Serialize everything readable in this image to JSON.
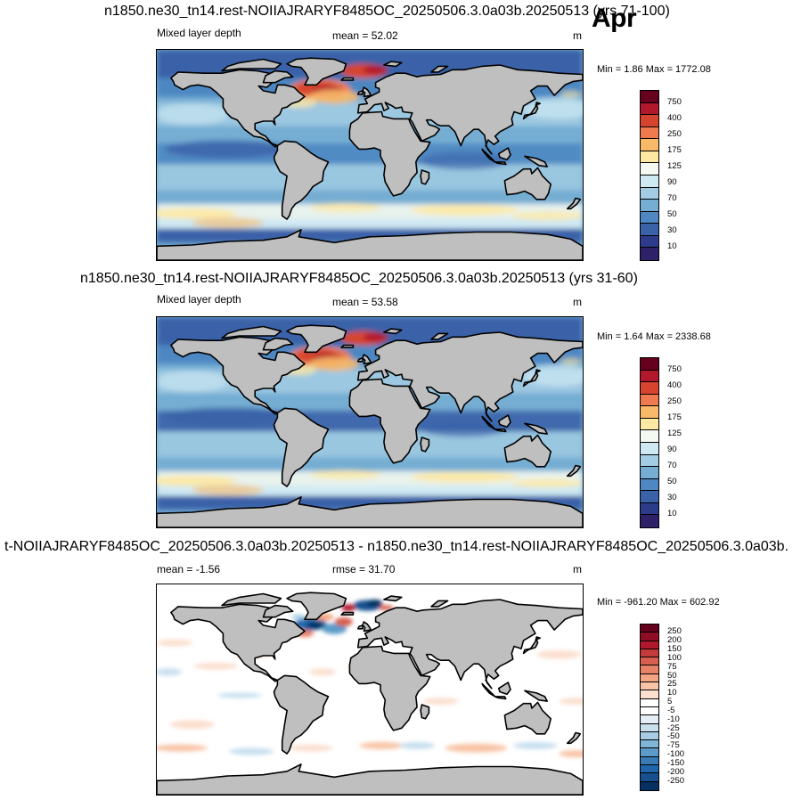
{
  "month": "Apr",
  "panels": [
    {
      "title": "n1850.ne30_tn14.rest-NOIIAJRARYF8485OC_20250506.3.0a03b.20250513 (yrs 71-100)",
      "left_label": "Mixed layer depth",
      "center_label": "mean =  52.02",
      "units": "m",
      "minmax": "Min =   1.86 Max = 1772.08",
      "levels": [
        "750",
        "400",
        "250",
        "175",
        "125",
        "90",
        "70",
        "50",
        "30",
        "10"
      ],
      "colors": [
        "#67001f",
        "#b2182b",
        "#d6442f",
        "#ef7a4f",
        "#f8b968",
        "#fde9a3",
        "#f4faf1",
        "#cfe9f3",
        "#a3cde4",
        "#75add3",
        "#4e87c2",
        "#3a62a8",
        "#2d3c8a",
        "#2e2167"
      ],
      "style": "mld"
    },
    {
      "title": "n1850.ne30_tn14.rest-NOIIAJRARYF8485OC_20250506.3.0a03b.20250513 (yrs 31-60)",
      "left_label": "Mixed layer depth",
      "center_label": "mean =  53.58",
      "units": "m",
      "minmax": "Min =   1.64 Max = 2338.68",
      "levels": [
        "750",
        "400",
        "250",
        "175",
        "125",
        "90",
        "70",
        "50",
        "30",
        "10"
      ],
      "colors": [
        "#67001f",
        "#b2182b",
        "#d6442f",
        "#ef7a4f",
        "#f8b968",
        "#fde9a3",
        "#f4faf1",
        "#cfe9f3",
        "#a3cde4",
        "#75add3",
        "#4e87c2",
        "#3a62a8",
        "#2d3c8a",
        "#2e2167"
      ],
      "style": "mld"
    },
    {
      "title": "t-NOIIAJRARYF8485OC_20250506.3.0a03b.20250513 - n1850.ne30_tn14.rest-NOIIAJRARYF8485OC_20250506.3.0a03b.",
      "left_label": "mean =  -1.56",
      "center_label": "rmse =  31.70",
      "units": "m",
      "minmax": "Min = -961.20 Max = 602.92",
      "levels": [
        "250",
        "200",
        "150",
        "100",
        "75",
        "50",
        "25",
        "10",
        "5",
        "-5",
        "-10",
        "-25",
        "-50",
        "-75",
        "-100",
        "-150",
        "-200",
        "-250"
      ],
      "colors": [
        "#67001f",
        "#8e0e25",
        "#b2182b",
        "#c43b3b",
        "#d6604d",
        "#e58268",
        "#f4a582",
        "#f8c4a6",
        "#fbe0d0",
        "#ffffff",
        "#ffffff",
        "#e3eef6",
        "#c8dfee",
        "#a6cde3",
        "#7fb5d6",
        "#5a9bc8",
        "#3a7bb6",
        "#2166ac",
        "#17508f",
        "#053061"
      ],
      "style": "diff"
    }
  ]
}
